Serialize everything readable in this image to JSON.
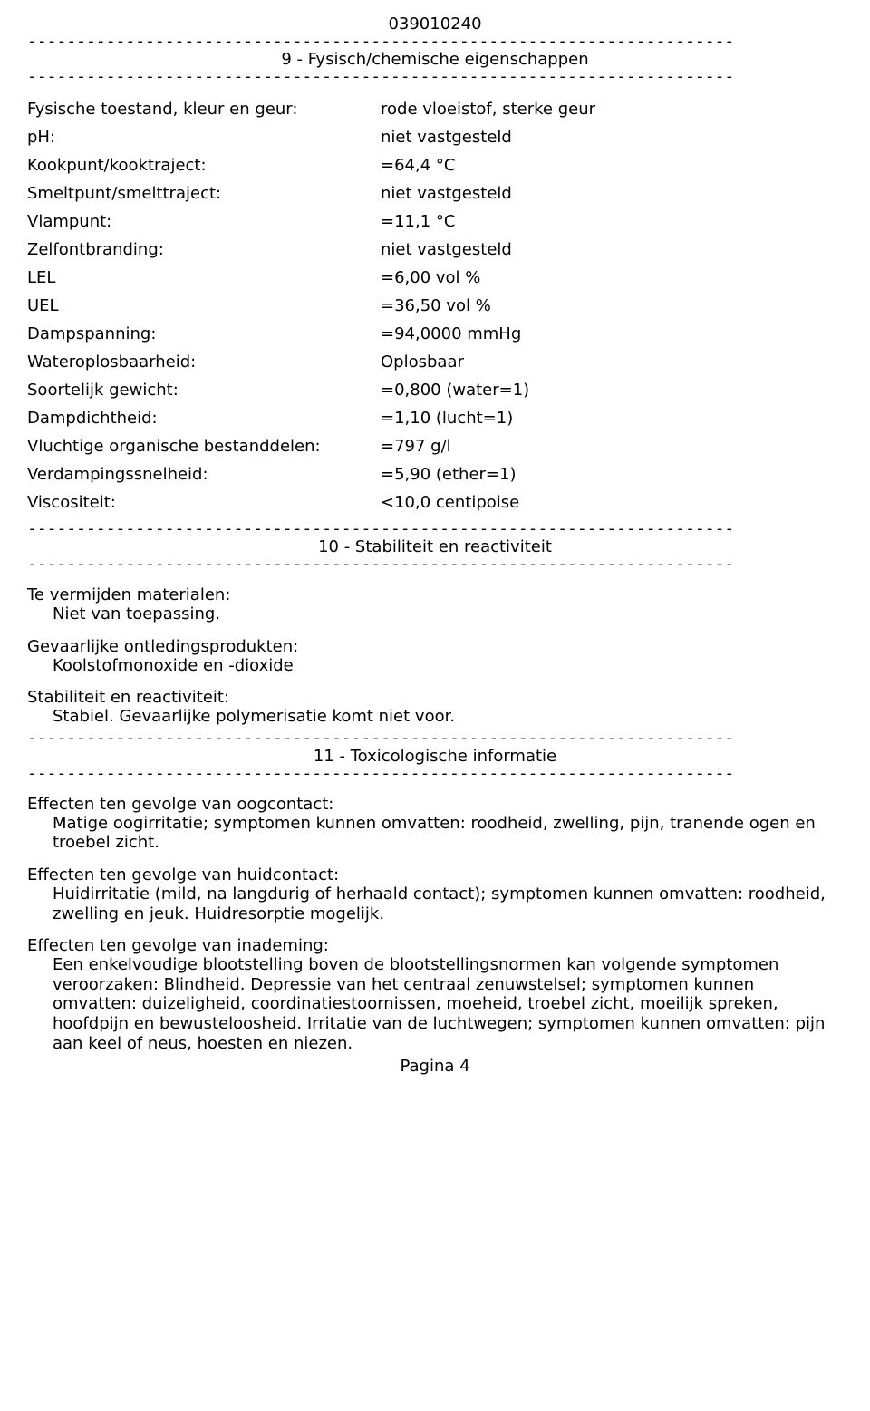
{
  "doc_id": "039010240",
  "rule_line": "------------------------------------------------------------------------",
  "sections": {
    "s9": {
      "title": "9 - Fysisch/chemische eigenschappen",
      "pairs": [
        {
          "key": "Fysische toestand, kleur en geur:",
          "val": "rode vloeistof, sterke geur"
        },
        {
          "key": "pH:",
          "val": "niet vastgesteld"
        },
        {
          "key": "Kookpunt/kooktraject:",
          "val": "=64,4 °C"
        },
        {
          "key": "Smeltpunt/smelttraject:",
          "val": "niet vastgesteld"
        },
        {
          "key": "Vlampunt:",
          "val": "=11,1 °C"
        },
        {
          "key": "Zelfontbranding:",
          "val": "niet vastgesteld"
        },
        {
          "key": "LEL",
          "val": "=6,00 vol %"
        },
        {
          "key": "UEL",
          "val": "=36,50 vol %"
        },
        {
          "key": "Dampspanning:",
          "val": "=94,0000 mmHg"
        },
        {
          "key": "Wateroplosbaarheid:",
          "val": "Oplosbaar"
        },
        {
          "key": "Soortelijk gewicht:",
          "val": "=0,800 (water=1)"
        },
        {
          "key": "Dampdichtheid:",
          "val": "=1,10 (lucht=1)"
        },
        {
          "key": "Vluchtige organische bestanddelen:",
          "val": "=797 g/l"
        },
        {
          "key": "Verdampingssnelheid:",
          "val": "=5,90 (ether=1)"
        },
        {
          "key": "Viscositeit:",
          "val": "<10,0 centipoise"
        }
      ]
    },
    "s10": {
      "title": "10 - Stabiliteit en reactiviteit",
      "blocks": [
        {
          "title": "Te vermijden materialen:",
          "body": "Niet van toepassing."
        },
        {
          "title": "Gevaarlijke ontledingsprodukten:",
          "body": "Koolstofmonoxide en -dioxide"
        },
        {
          "title": "Stabiliteit en reactiviteit:",
          "body": "Stabiel. Gevaarlijke polymerisatie komt niet voor."
        }
      ]
    },
    "s11": {
      "title": "11 - Toxicologische informatie",
      "blocks": [
        {
          "title": "Effecten ten gevolge van oogcontact:",
          "body": "Matige oogirritatie; symptomen kunnen omvatten: roodheid, zwelling, pijn, tranende ogen en troebel zicht."
        },
        {
          "title": "Effecten ten gevolge van huidcontact:",
          "body": "Huidirritatie (mild, na langdurig of herhaald contact); symptomen kunnen omvatten: roodheid, zwelling en jeuk. Huidresorptie mogelijk."
        },
        {
          "title": "Effecten ten gevolge van inademing:",
          "body": "Een enkelvoudige blootstelling boven de blootstellingsnormen kan volgende symptomen veroorzaken: Blindheid. Depressie van het centraal zenuwstelsel; symptomen kunnen omvatten: duizeligheid, coordinatiestoornissen, moeheid, troebel zicht, moeilijk spreken, hoofdpijn en bewusteloosheid. Irritatie van de luchtwegen; symptomen kunnen omvatten: pijn aan keel of neus, hoesten en niezen."
        }
      ]
    }
  },
  "footer": "Pagina 4"
}
